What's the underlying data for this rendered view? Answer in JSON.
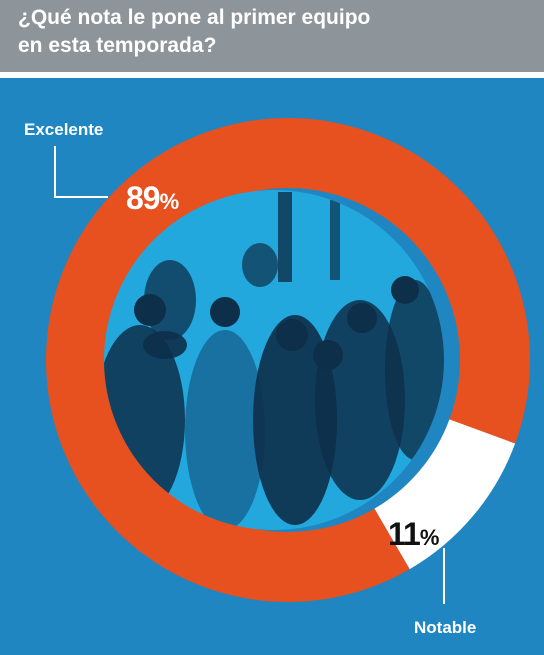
{
  "header": {
    "title_line1": "¿Qué nota le pone al primer equipo",
    "title_line2": "en esta temporada?"
  },
  "colors": {
    "background": "#1f86c2",
    "header": "#8d959b",
    "excelente": "#e7501f",
    "notable": "#ffffff",
    "photo": "#23a8dd",
    "photo_dark": "#0d2f4a"
  },
  "chart_data": {
    "type": "pie",
    "style": "donut",
    "title": "¿Qué nota le pone al primer equipo en esta temporada?",
    "slices": [
      {
        "label": "Excelente",
        "value": 89,
        "value_label": "89",
        "color": "#e7501f"
      },
      {
        "label": "Notable",
        "value": 11,
        "value_label": "11",
        "color": "#ffffff"
      }
    ],
    "unit": "%"
  },
  "center_image": {
    "icon": "team-celebration-photo"
  }
}
